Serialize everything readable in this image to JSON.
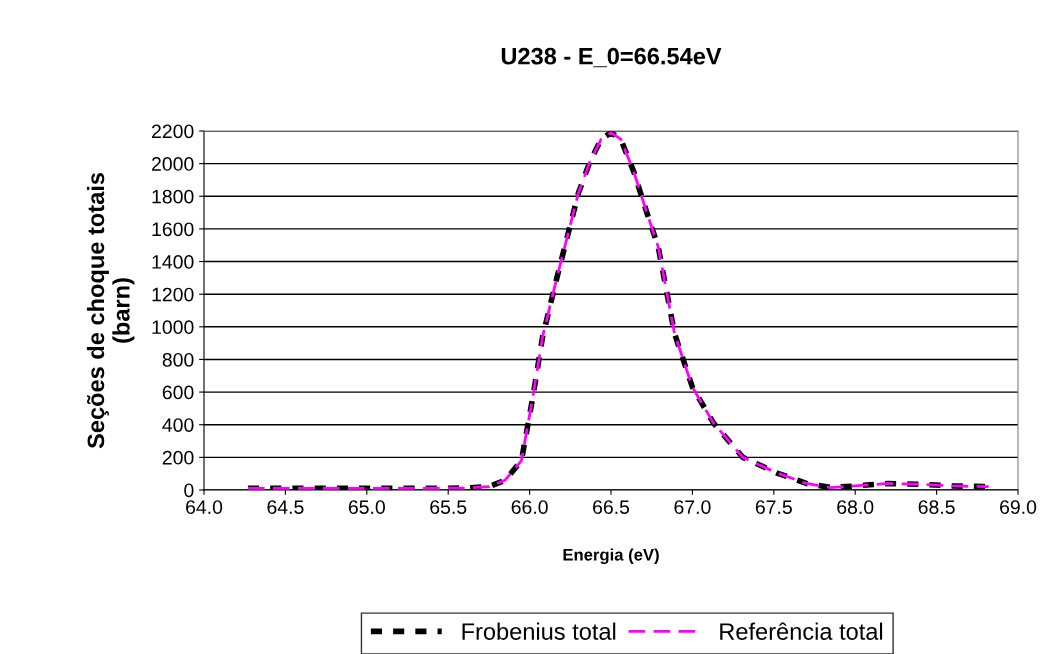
{
  "chart_data": {
    "type": "line",
    "title": "U238 - E_0=66.54eV",
    "xlabel": "Energia (eV)",
    "ylabel": "Seções de choque totais\n(barn)",
    "x": [
      64.27,
      64.6,
      64.85,
      65.1,
      65.35,
      65.6,
      65.75,
      65.85,
      65.95,
      66.02,
      66.08,
      66.17,
      66.3,
      66.37,
      66.44,
      66.5,
      66.56,
      66.64,
      66.72,
      66.79,
      66.89,
      67.0,
      67.13,
      67.31,
      67.52,
      67.7,
      67.85,
      68.0,
      68.2,
      68.4,
      68.6,
      68.82
    ],
    "series": [
      {
        "name": "Frobenius total",
        "color": "#000000",
        "line_style": "dashed",
        "values": [
          10,
          10,
          10,
          10,
          10,
          12,
          20,
          60,
          180,
          570,
          940,
          1310,
          1820,
          2010,
          2150,
          2190,
          2150,
          1950,
          1700,
          1490,
          960,
          630,
          410,
          200,
          104,
          40,
          15,
          25,
          40,
          35,
          25,
          20
        ]
      },
      {
        "name": "Referência total",
        "color": "#ff00ff",
        "line_style": "dashed",
        "values": [
          10,
          10,
          10,
          10,
          10,
          12,
          20,
          60,
          180,
          570,
          940,
          1310,
          1820,
          2010,
          2150,
          2190,
          2150,
          1950,
          1700,
          1490,
          960,
          630,
          410,
          200,
          104,
          40,
          15,
          25,
          40,
          35,
          25,
          20
        ]
      }
    ],
    "xlim": [
      64.0,
      69.0
    ],
    "xticks": [
      {
        "value": 64.0,
        "label": "64.0"
      },
      {
        "value": 64.5,
        "label": "64.5"
      },
      {
        "value": 65.0,
        "label": "65.0"
      },
      {
        "value": 65.5,
        "label": "65.5"
      },
      {
        "value": 66.0,
        "label": "66.0"
      },
      {
        "value": 66.5,
        "label": "66.5"
      },
      {
        "value": 67.0,
        "label": "67.0"
      },
      {
        "value": 67.5,
        "label": "67.5"
      },
      {
        "value": 68.0,
        "label": "68.0"
      },
      {
        "value": 68.5,
        "label": "68.5"
      },
      {
        "value": 69.0,
        "label": "69.0"
      }
    ],
    "ylim": [
      0,
      2200
    ],
    "yticks": [
      0,
      200,
      400,
      600,
      800,
      1000,
      1200,
      1400,
      1600,
      1800,
      2000,
      2200
    ],
    "grid": "y",
    "legend": "bottom",
    "marker": "none"
  }
}
